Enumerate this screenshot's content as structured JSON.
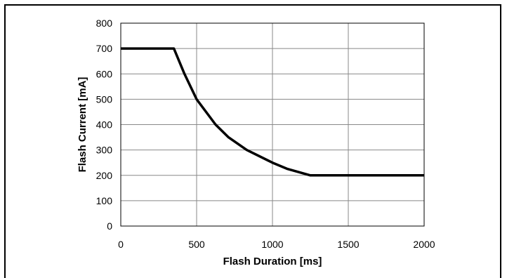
{
  "chart_data": {
    "type": "line",
    "xlabel": "Flash Duration [ms]",
    "ylabel": "Flash Current [mA]",
    "xlim": [
      0,
      2000
    ],
    "ylim": [
      0,
      800
    ],
    "x_ticks": [
      0,
      500,
      1000,
      1500,
      2000
    ],
    "y_ticks": [
      0,
      100,
      200,
      300,
      400,
      500,
      600,
      700,
      800
    ],
    "x_tick_labels": [
      "0",
      "500",
      "1000",
      "1500",
      "2000"
    ],
    "y_tick_labels": [
      "0",
      "100",
      "200",
      "300",
      "400",
      "500",
      "600",
      "700",
      "800"
    ],
    "grid": true,
    "series": [
      {
        "x": [
          0,
          350,
          420,
          500,
          625,
          710,
          830,
          1000,
          1100,
          1250,
          2000
        ],
        "y": [
          700,
          700,
          600,
          500,
          400,
          350,
          300,
          250,
          225,
          200,
          200
        ],
        "color": "#000000"
      }
    ]
  }
}
